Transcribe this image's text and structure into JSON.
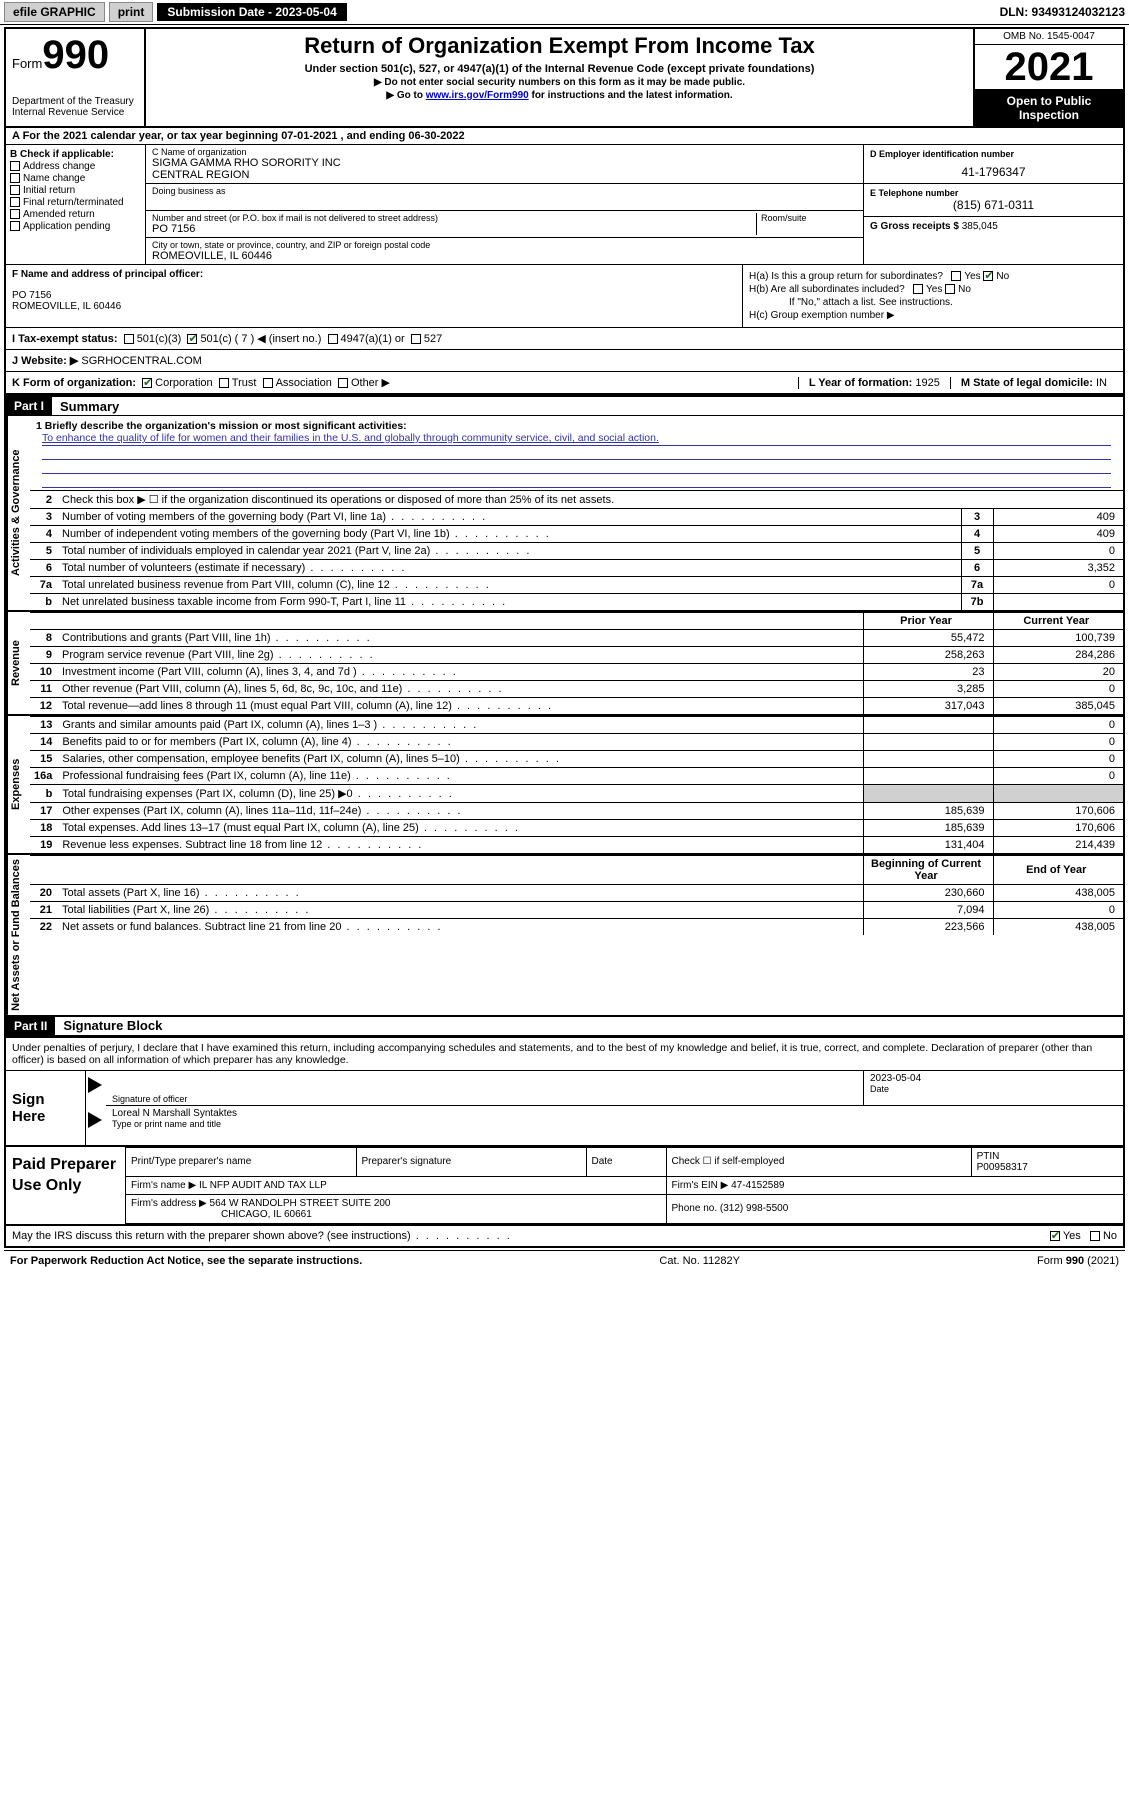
{
  "topbar": {
    "efile": "efile GRAPHIC",
    "print": "print",
    "sub_label": "Submission Date - 2023-05-04",
    "dln": "DLN: 93493124032123"
  },
  "header": {
    "form_word": "Form",
    "form_num": "990",
    "dept": "Department of the Treasury",
    "irs": "Internal Revenue Service",
    "title": "Return of Organization Exempt From Income Tax",
    "sub1": "Under section 501(c), 527, or 4947(a)(1) of the Internal Revenue Code (except private foundations)",
    "sub2": "▶ Do not enter social security numbers on this form as it may be made public.",
    "sub3_pre": "▶ Go to ",
    "sub3_link": "www.irs.gov/Form990",
    "sub3_post": " for instructions and the latest information.",
    "omb": "OMB No. 1545-0047",
    "year": "2021",
    "open": "Open to Public Inspection"
  },
  "row_a": "A For the 2021 calendar year, or tax year beginning 07-01-2021   , and ending 06-30-2022",
  "box_b": {
    "title": "B Check if applicable:",
    "opts": [
      "Address change",
      "Name change",
      "Initial return",
      "Final return/terminated",
      "Amended return",
      "Application pending"
    ]
  },
  "box_c": {
    "name_lbl": "C Name of organization",
    "name1": "SIGMA GAMMA RHO SORORITY INC",
    "name2": "CENTRAL REGION",
    "dba_lbl": "Doing business as",
    "addr_lbl": "Number and street (or P.O. box if mail is not delivered to street address)",
    "room_lbl": "Room/suite",
    "addr": "PO 7156",
    "city_lbl": "City or town, state or province, country, and ZIP or foreign postal code",
    "city": "ROMEOVILLE, IL  60446"
  },
  "box_d": {
    "ein_lbl": "D Employer identification number",
    "ein": "41-1796347",
    "tel_lbl": "E Telephone number",
    "tel": "(815) 671-0311",
    "gross_lbl": "G Gross receipts $",
    "gross": "385,045"
  },
  "row_f": {
    "lbl": "F Name and address of principal officer:",
    "l1": "PO 7156",
    "l2": "ROMEOVILLE, IL  60446"
  },
  "row_h": {
    "ha": "H(a)  Is this a group return for subordinates?",
    "hb": "H(b)  Are all subordinates included?",
    "hb_note": "If \"No,\" attach a list. See instructions.",
    "hc": "H(c)  Group exemption number ▶"
  },
  "row_i": {
    "lbl": "I   Tax-exempt status:",
    "o1": "501(c)(3)",
    "o2": "501(c) ( 7 ) ◀ (insert no.)",
    "o3": "4947(a)(1) or",
    "o4": "527"
  },
  "row_j": {
    "lbl": "J   Website: ▶",
    "val": "SGRHOCENTRAL.COM"
  },
  "row_k": {
    "lbl": "K Form of organization:",
    "opts": [
      "Corporation",
      "Trust",
      "Association",
      "Other ▶"
    ],
    "l_lbl": "L Year of formation:",
    "l_val": "1925",
    "m_lbl": "M State of legal domicile:",
    "m_val": "IN"
  },
  "parts": {
    "p1": "Part I",
    "p1t": "Summary",
    "p2": "Part II",
    "p2t": "Signature Block"
  },
  "vtabs": {
    "gov": "Activities & Governance",
    "rev": "Revenue",
    "exp": "Expenses",
    "net": "Net Assets or Fund Balances"
  },
  "mission": {
    "q1": "1   Briefly describe the organization's mission or most significant activities:",
    "text": "To enhance the quality of life for women and their families in the U.S. and globally through community service, civil, and social action."
  },
  "gov_lines": [
    {
      "n": "2",
      "t": "Check this box ▶ ☐  if the organization discontinued its operations or disposed of more than 25% of its net assets.",
      "box": "",
      "v": ""
    },
    {
      "n": "3",
      "t": "Number of voting members of the governing body (Part VI, line 1a)",
      "box": "3",
      "v": "409"
    },
    {
      "n": "4",
      "t": "Number of independent voting members of the governing body (Part VI, line 1b)",
      "box": "4",
      "v": "409"
    },
    {
      "n": "5",
      "t": "Total number of individuals employed in calendar year 2021 (Part V, line 2a)",
      "box": "5",
      "v": "0"
    },
    {
      "n": "6",
      "t": "Total number of volunteers (estimate if necessary)",
      "box": "6",
      "v": "3,352"
    },
    {
      "n": "7a",
      "t": "Total unrelated business revenue from Part VIII, column (C), line 12",
      "box": "7a",
      "v": "0"
    },
    {
      "n": "b",
      "t": "Net unrelated business taxable income from Form 990-T, Part I, line 11",
      "box": "7b",
      "v": ""
    }
  ],
  "col_hdr": {
    "py": "Prior Year",
    "cy": "Current Year"
  },
  "rev_lines": [
    {
      "n": "8",
      "t": "Contributions and grants (Part VIII, line 1h)",
      "py": "55,472",
      "cy": "100,739"
    },
    {
      "n": "9",
      "t": "Program service revenue (Part VIII, line 2g)",
      "py": "258,263",
      "cy": "284,286"
    },
    {
      "n": "10",
      "t": "Investment income (Part VIII, column (A), lines 3, 4, and 7d )",
      "py": "23",
      "cy": "20"
    },
    {
      "n": "11",
      "t": "Other revenue (Part VIII, column (A), lines 5, 6d, 8c, 9c, 10c, and 11e)",
      "py": "3,285",
      "cy": "0"
    },
    {
      "n": "12",
      "t": "Total revenue—add lines 8 through 11 (must equal Part VIII, column (A), line 12)",
      "py": "317,043",
      "cy": "385,045"
    }
  ],
  "exp_lines": [
    {
      "n": "13",
      "t": "Grants and similar amounts paid (Part IX, column (A), lines 1–3 )",
      "py": "",
      "cy": "0"
    },
    {
      "n": "14",
      "t": "Benefits paid to or for members (Part IX, column (A), line 4)",
      "py": "",
      "cy": "0"
    },
    {
      "n": "15",
      "t": "Salaries, other compensation, employee benefits (Part IX, column (A), lines 5–10)",
      "py": "",
      "cy": "0"
    },
    {
      "n": "16a",
      "t": "Professional fundraising fees (Part IX, column (A), line 11e)",
      "py": "",
      "cy": "0"
    },
    {
      "n": "b",
      "t": "Total fundraising expenses (Part IX, column (D), line 25) ▶0",
      "py": "SHADE",
      "cy": "SHADE"
    },
    {
      "n": "17",
      "t": "Other expenses (Part IX, column (A), lines 11a–11d, 11f–24e)",
      "py": "185,639",
      "cy": "170,606"
    },
    {
      "n": "18",
      "t": "Total expenses. Add lines 13–17 (must equal Part IX, column (A), line 25)",
      "py": "185,639",
      "cy": "170,606"
    },
    {
      "n": "19",
      "t": "Revenue less expenses. Subtract line 18 from line 12",
      "py": "131,404",
      "cy": "214,439"
    }
  ],
  "net_hdr": {
    "b": "Beginning of Current Year",
    "e": "End of Year"
  },
  "net_lines": [
    {
      "n": "20",
      "t": "Total assets (Part X, line 16)",
      "py": "230,660",
      "cy": "438,005"
    },
    {
      "n": "21",
      "t": "Total liabilities (Part X, line 26)",
      "py": "7,094",
      "cy": "0"
    },
    {
      "n": "22",
      "t": "Net assets or fund balances. Subtract line 21 from line 20",
      "py": "223,566",
      "cy": "438,005"
    }
  ],
  "sig": {
    "intro": "Under penalties of perjury, I declare that I have examined this return, including accompanying schedules and statements, and to the best of my knowledge and belief, it is true, correct, and complete. Declaration of preparer (other than officer) is based on all information of which preparer has any knowledge.",
    "sign_here": "Sign Here",
    "sig_officer": "Signature of officer",
    "date_lbl": "Date",
    "date": "2023-05-04",
    "name": "Loreal N Marshall  Syntaktes",
    "name_lbl": "Type or print name and title"
  },
  "prep": {
    "title": "Paid Preparer Use Only",
    "h1": "Print/Type preparer's name",
    "h2": "Preparer's signature",
    "h3": "Date",
    "h4_chk": "Check ☐ if self-employed",
    "h5": "PTIN",
    "ptin": "P00958317",
    "firm_lbl": "Firm's name   ▶",
    "firm": "IL NFP AUDIT AND TAX LLP",
    "ein_lbl": "Firm's EIN ▶",
    "ein": "47-4152589",
    "addr_lbl": "Firm's address ▶",
    "addr1": "564 W RANDOLPH STREET SUITE 200",
    "addr2": "CHICAGO, IL  60661",
    "phone_lbl": "Phone no.",
    "phone": "(312) 998-5500"
  },
  "footer": {
    "q": "May the IRS discuss this return with the preparer shown above? (see instructions)",
    "yes": "Yes",
    "no": "No",
    "pra": "For Paperwork Reduction Act Notice, see the separate instructions.",
    "cat": "Cat. No. 11282Y",
    "form": "Form 990 (2021)"
  }
}
